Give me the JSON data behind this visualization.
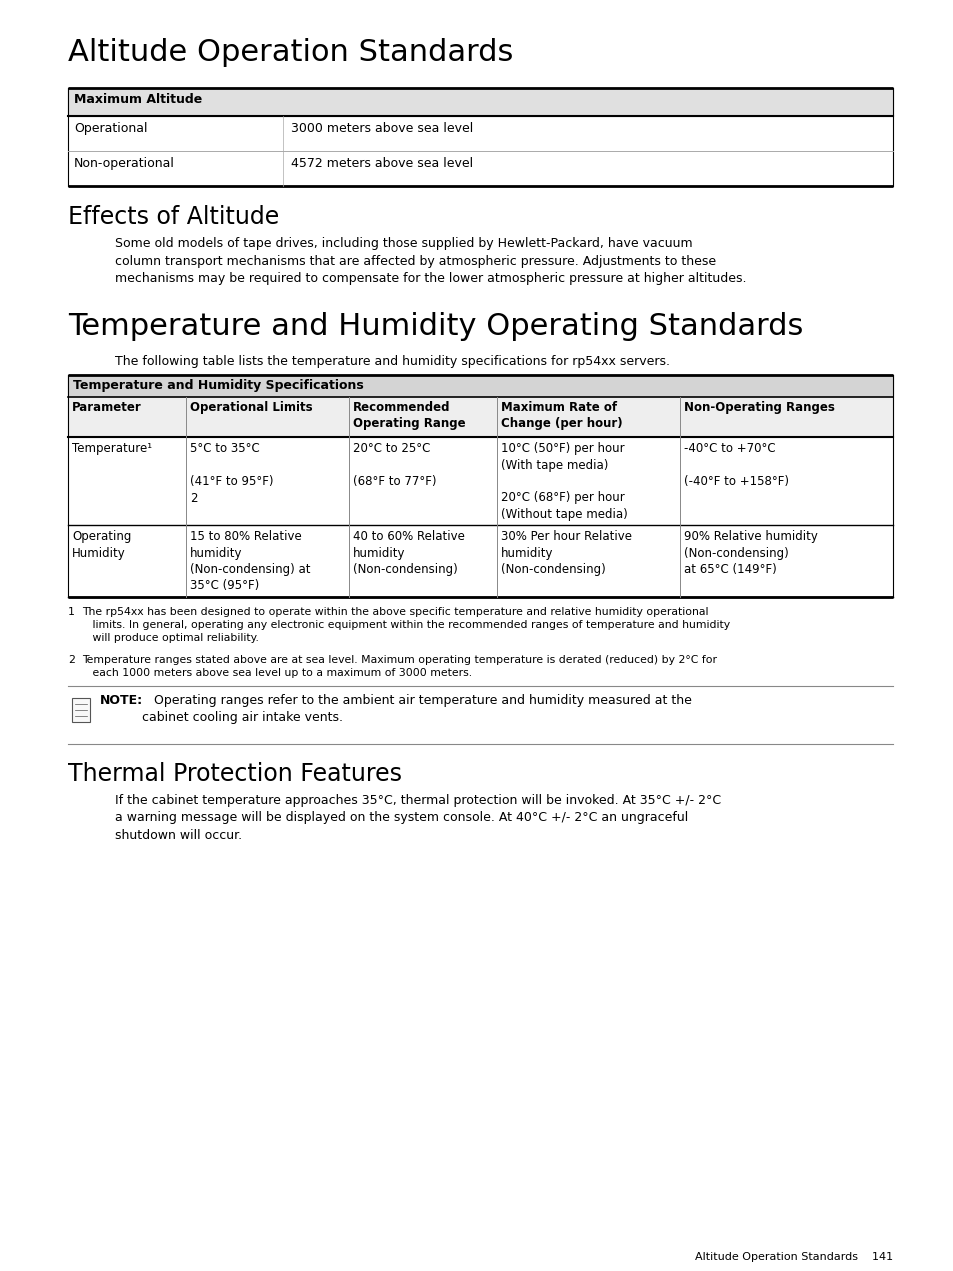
{
  "page_bg": "#ffffff",
  "title1": "Altitude Operation Standards",
  "title2": "Effects of Altitude",
  "title3": "Temperature and Humidity Operating Standards",
  "title4": "Thermal Protection Features",
  "alt_table_header": "Maximum Altitude",
  "alt_table_rows": [
    [
      "Operational",
      "3000 meters above sea level"
    ],
    [
      "Non-operational",
      "4572 meters above sea level"
    ]
  ],
  "effects_para": "Some old models of tape drives, including those supplied by Hewlett-Packard, have vacuum\ncolumn transport mechanisms that are affected by atmospheric pressure. Adjustments to these\nmechanisms may be required to compensate for the lower atmospheric pressure at higher altitudes.",
  "temp_intro": "The following table lists the temperature and humidity specifications for rp54xx servers.",
  "temp_table_title": "Temperature and Humidity Specifications",
  "temp_headers": [
    "Parameter",
    "Operational Limits",
    "Recommended\nOperating Range",
    "Maximum Rate of\nChange (per hour)",
    "Non-Operating Ranges"
  ],
  "temp_row0": [
    "Temperature¹",
    "5°C to 35°C\n\n(41°F to 95°F)\n2",
    "20°C to 25°C\n\n(68°F to 77°F)",
    "10°C (50°F) per hour\n(With tape media)\n\n20°C (68°F) per hour\n(Without tape media)",
    "-40°C to +70°C\n\n(-40°F to +158°F)"
  ],
  "temp_row1": [
    "Operating\nHumidity",
    "15 to 80% Relative\nhumidity\n(Non-condensing) at\n35°C (95°F)",
    "40 to 60% Relative\nhumidity\n(Non-condensing)",
    "30% Per hour Relative\nhumidity\n(Non-condensing)",
    "90% Relative humidity\n(Non-condensing)\nat 65°C (149°F)"
  ],
  "footnote1_num": "1",
  "footnote1_text": "The rp54xx has been designed to operate within the above specific temperature and relative humidity operational\n   limits. In general, operating any electronic equipment within the recommended ranges of temperature and humidity\n   will produce optimal reliability.",
  "footnote2_num": "2",
  "footnote2_text": "Temperature ranges stated above are at sea level. Maximum operating temperature is derated (reduced) by 2°C for\n   each 1000 meters above sea level up to a maximum of 3000 meters.",
  "note_label": "NOTE:",
  "note_body": "   Operating ranges refer to the ambient air temperature and humidity measured at the\ncabinet cooling air intake vents.",
  "thermal_para": "If the cabinet temperature approaches 35°C, thermal protection will be invoked. At 35°C +/- 2°C\na warning message will be displayed on the system console. At 40°C +/- 2°C an ungraceful\nshutdown will occur.",
  "footer_text": "Altitude Operation Standards    141"
}
